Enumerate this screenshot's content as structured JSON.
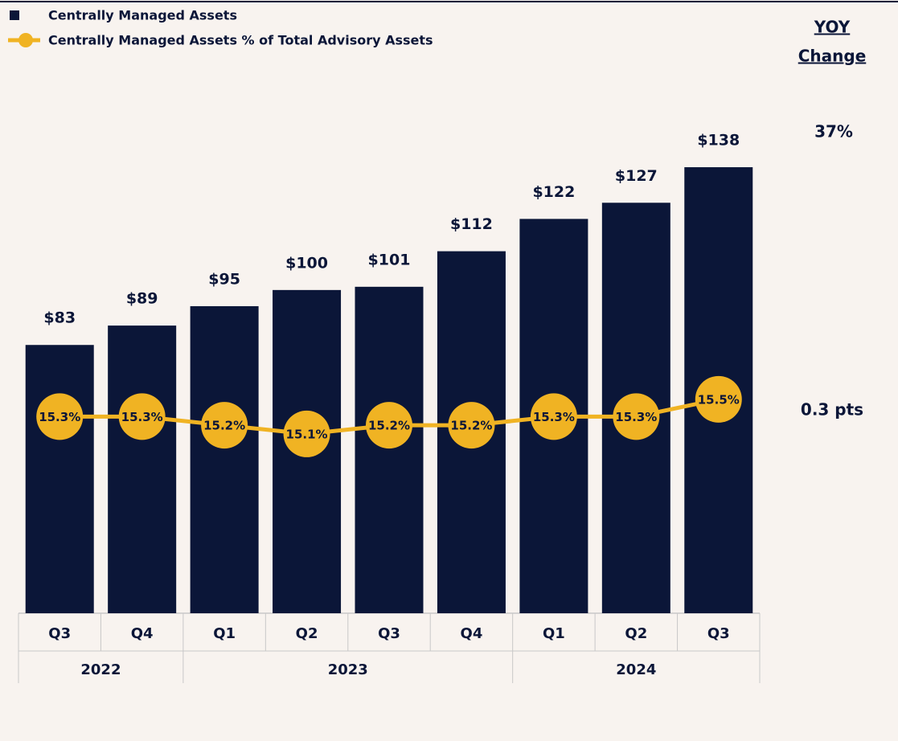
{
  "chart_data": {
    "type": "bar",
    "categories": [
      "Q3",
      "Q4",
      "Q1",
      "Q2",
      "Q3",
      "Q4",
      "Q1",
      "Q2",
      "Q3"
    ],
    "groups": [
      {
        "label": "2022",
        "span": 2
      },
      {
        "label": "2023",
        "span": 4
      },
      {
        "label": "2024",
        "span": 3
      }
    ],
    "series": [
      {
        "name": "Centrally Managed Assets",
        "type": "bar",
        "color": "#0b1638",
        "values": [
          83,
          89,
          95,
          100,
          101,
          112,
          122,
          127,
          138
        ],
        "value_labels": [
          "$83",
          "$89",
          "$95",
          "$100",
          "$101",
          "$112",
          "$122",
          "$127",
          "$138"
        ]
      },
      {
        "name": "Centrally Managed Assets % of Total Advisory Assets",
        "type": "line",
        "color": "#f0b323",
        "axis": "y2",
        "values": [
          15.3,
          15.3,
          15.2,
          15.1,
          15.2,
          15.2,
          15.3,
          15.3,
          15.5
        ],
        "value_labels": [
          "15.3%",
          "15.3%",
          "15.2%",
          "15.1%",
          "15.2%",
          "15.2%",
          "15.3%",
          "15.3%",
          "15.5%"
        ]
      }
    ],
    "ylim": [
      0,
      140
    ],
    "y2lim": [
      14.5,
      16
    ],
    "yoy_header": [
      "YOY",
      "Change"
    ],
    "yoy_labels": [
      "37%",
      "0.3 pts"
    ]
  }
}
